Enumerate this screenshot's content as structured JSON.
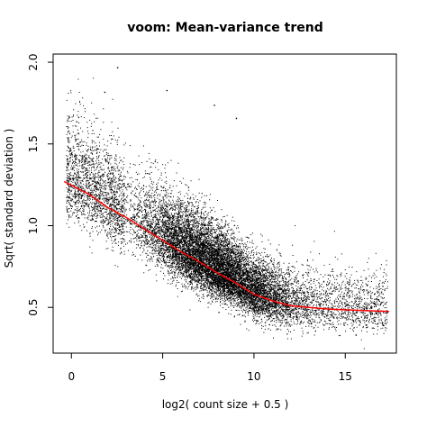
{
  "chart_data": {
    "type": "scatter",
    "title": "voom: Mean-variance trend",
    "xlabel": "log2( count size + 0.5 )",
    "ylabel": "Sqrt( standard deviation )",
    "xlim": [
      -1.0,
      17.8
    ],
    "ylim": [
      0.22,
      2.05
    ],
    "x_ticks": [
      0,
      5,
      10,
      15
    ],
    "y_ticks": [
      0.5,
      1.0,
      1.5,
      2.0
    ],
    "x_tick_labels": [
      "0",
      "5",
      "10",
      "15"
    ],
    "y_tick_labels": [
      "0.5",
      "1.0",
      "1.5",
      "2.0"
    ],
    "grid": false,
    "legend": "none",
    "point_color": "#000000",
    "trend_color": "#ff0000",
    "point_count_estimate": 15000,
    "point_cloud": {
      "x_range": [
        -0.3,
        17.3
      ],
      "densest_region": {
        "x": [
          9,
          12
        ],
        "y": [
          0.4,
          0.7
        ]
      },
      "upper_outliers": [
        {
          "x": 2.5,
          "y": 1.97
        },
        {
          "x": 1.8,
          "y": 1.82
        },
        {
          "x": 5.2,
          "y": 1.83
        },
        {
          "x": 7.8,
          "y": 1.74
        },
        {
          "x": 9.0,
          "y": 1.66
        }
      ]
    },
    "trend_line": {
      "name": "",
      "x": [
        -0.4,
        1,
        2,
        3,
        4,
        5,
        6,
        7,
        8,
        9,
        10,
        11,
        12,
        13,
        14,
        15,
        16,
        17.4
      ],
      "y": [
        1.27,
        1.19,
        1.11,
        1.05,
        0.98,
        0.91,
        0.84,
        0.78,
        0.71,
        0.65,
        0.58,
        0.54,
        0.51,
        0.5,
        0.49,
        0.485,
        0.48,
        0.475
      ]
    }
  }
}
